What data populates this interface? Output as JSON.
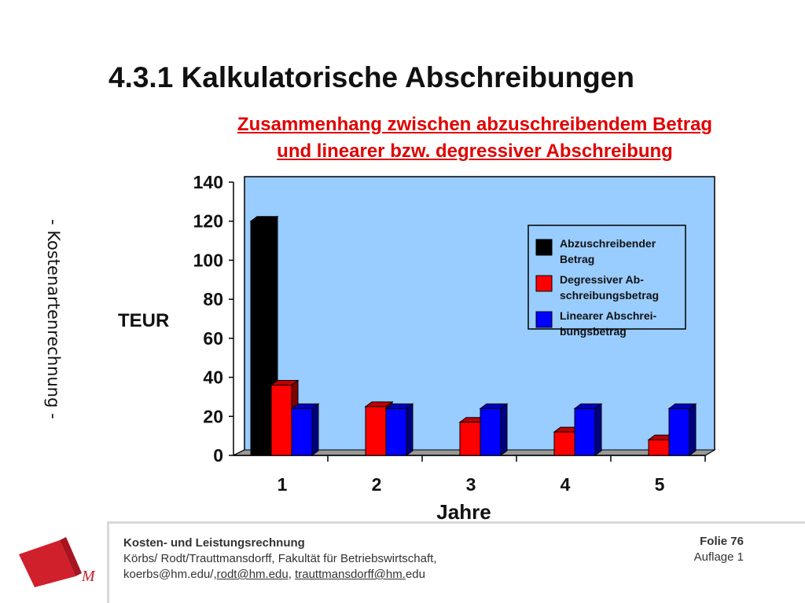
{
  "slide": {
    "title": "4.3.1 Kalkulatorische Abschreibungen",
    "subtitle_line1": "Zusammenhang zwischen abzuschreibendem Betrag",
    "subtitle_line2": "und linearer bzw. degressiver Abschreibung",
    "side_label": "- Kostenartenrechnung -"
  },
  "chart_data": {
    "type": "bar",
    "categories": [
      "1",
      "2",
      "3",
      "4",
      "5"
    ],
    "series": [
      {
        "name": "Abzuschreibender Betrag",
        "values": [
          120,
          0,
          0,
          0,
          0
        ],
        "color": "#000000"
      },
      {
        "name": "Degressiver Abschreibungsbetrag",
        "values": [
          36,
          25,
          17,
          12,
          8
        ],
        "color": "#ff0000"
      },
      {
        "name": "Linearer Abschreibungsbetrag",
        "values": [
          24,
          24,
          24,
          24,
          24
        ],
        "color": "#0000ff"
      }
    ],
    "legend_lines": [
      [
        "Abzuschreibender",
        "Betrag"
      ],
      [
        "Degressiver Ab-",
        "schreibungsbetrag"
      ],
      [
        "Linearer Abschrei-",
        "bungsbetrag"
      ]
    ],
    "y_ticks": [
      "0",
      "20",
      "40",
      "60",
      "80",
      "100",
      "120",
      "140"
    ],
    "ylabel": "TEUR",
    "xlabel": "Jahre",
    "ylim": [
      0,
      140
    ],
    "plot_background": "#99ccff",
    "legend_position": "top-right"
  },
  "footer": {
    "course": "Kosten- und Leistungsrechnung",
    "authors": "Körbs/ Rodt/Trauttmansdorff, Fakultät für Betriebswirtschaft,",
    "email1": "koerbs@hm.edu/,",
    "email2": "rodt@hm.edu",
    "sep": ", ",
    "email3_link": "trauttmansdorff@hm.",
    "email3_rest": "edu",
    "slide_number": "Folie 76",
    "edition": "Auflage 1"
  },
  "logo": {
    "letter": "M"
  }
}
